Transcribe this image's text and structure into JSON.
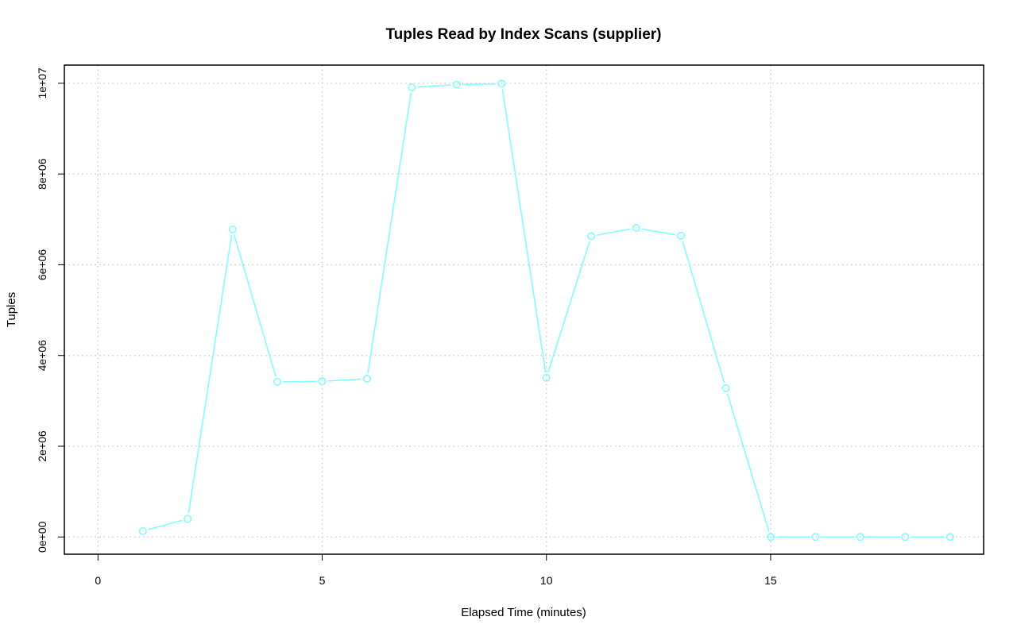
{
  "chart_data": {
    "type": "line",
    "title": "Tuples Read by Index Scans (supplier)",
    "xlabel": "Elapsed Time (minutes)",
    "ylabel": "Tuples",
    "xlim": [
      -0.75,
      19.75
    ],
    "ylim": [
      -380000,
      10400000
    ],
    "x_ticks": [
      0,
      5,
      10,
      15
    ],
    "x_tick_labels": [
      "0",
      "5",
      "10",
      "15"
    ],
    "y_ticks": [
      0,
      2000000,
      4000000,
      6000000,
      8000000,
      10000000
    ],
    "y_tick_labels": [
      "0e+00",
      "2e+06",
      "4e+06",
      "6e+06",
      "8e+06",
      "1e+07"
    ],
    "grid": true,
    "series": [
      {
        "color": "#7fffff",
        "x": [
          1,
          2,
          3,
          4,
          5,
          6,
          7,
          8,
          9,
          10,
          11,
          12,
          13,
          14,
          15,
          16,
          17,
          18,
          19
        ],
        "y": [
          130000,
          400000,
          6780000,
          3420000,
          3430000,
          3490000,
          9910000,
          9970000,
          9990000,
          3510000,
          6630000,
          6810000,
          6640000,
          3280000,
          0,
          0,
          0,
          0,
          0
        ]
      }
    ]
  }
}
